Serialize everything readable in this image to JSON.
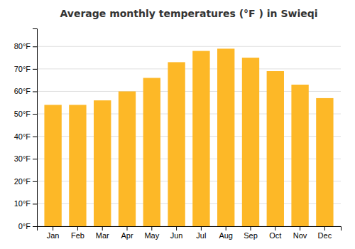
{
  "chart_data": {
    "type": "bar",
    "title": "Average monthly temperatures (°F ) in Swieqi",
    "categories": [
      "Jan",
      "Feb",
      "Mar",
      "Apr",
      "May",
      "Jun",
      "Jul",
      "Aug",
      "Sep",
      "Oct",
      "Nov",
      "Dec"
    ],
    "values": [
      54,
      54,
      56,
      60,
      66,
      73,
      78,
      79,
      75,
      69,
      63,
      57
    ],
    "color": "#FDB827",
    "ylim": [
      0,
      88
    ],
    "yticks": [
      {
        "value": 0,
        "label": "0°F"
      },
      {
        "value": 10,
        "label": "10°F"
      },
      {
        "value": 20,
        "label": "20°F"
      },
      {
        "value": 30,
        "label": "30°F"
      },
      {
        "value": 40,
        "label": "40°F"
      },
      {
        "value": 50,
        "label": "50°F"
      },
      {
        "value": 60,
        "label": "60°F"
      },
      {
        "value": 70,
        "label": "70°F"
      },
      {
        "value": 80,
        "label": "80°F"
      }
    ],
    "grid": true
  }
}
